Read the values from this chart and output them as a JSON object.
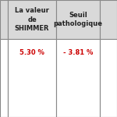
{
  "col1_header": "La valeur\nde\nSHIMMER",
  "col2_header": "Seuil\npathologique",
  "col3_header": "",
  "col1_value": "5.30 %",
  "col2_value": "- 3.81 %",
  "col3_value": "",
  "header_bg": "#d9d9d9",
  "cell_bg": "#ffffff",
  "border_color": "#888888",
  "header_fontsize": 6.0,
  "value_fontsize": 6.0,
  "value_color": "#cc0000",
  "header_text_color": "#222222",
  "left_strip_color": "#d9d9d9"
}
